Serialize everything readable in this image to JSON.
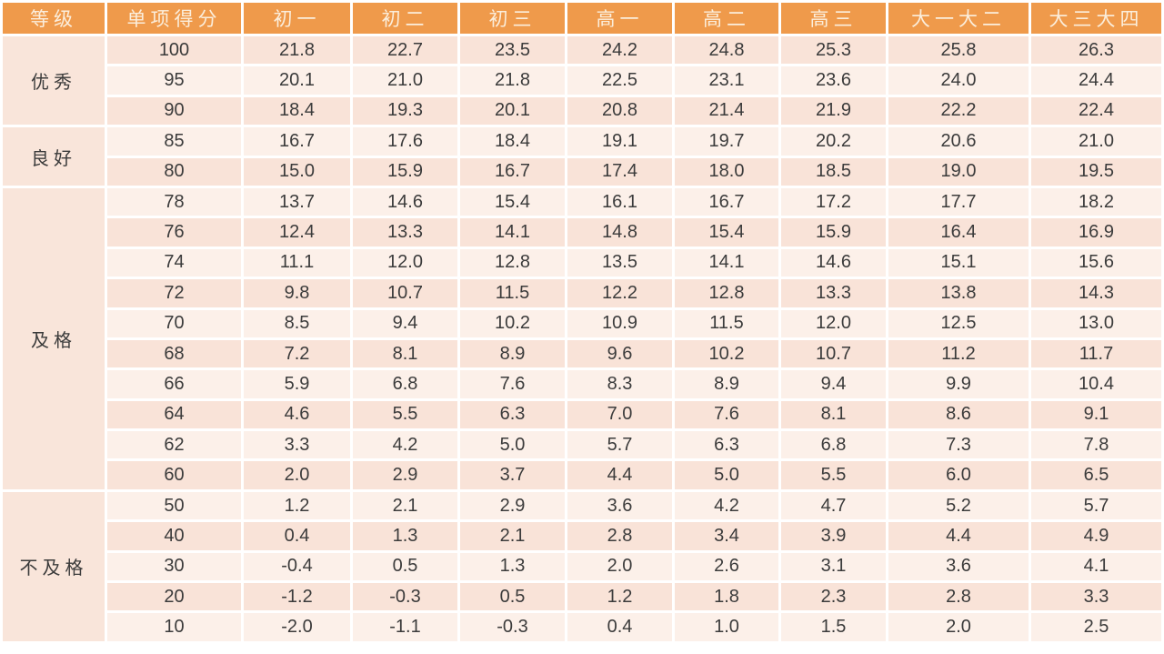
{
  "chart_data": {
    "type": "table",
    "columns": [
      "等级",
      "单项得分",
      "初一",
      "初二",
      "初三",
      "高一",
      "高二",
      "高三",
      "大一大二",
      "大三大四"
    ],
    "groups": [
      {
        "label": "优秀",
        "rows": [
          {
            "score": "100",
            "values": [
              "21.8",
              "22.7",
              "23.5",
              "24.2",
              "24.8",
              "25.3",
              "25.8",
              "26.3"
            ]
          },
          {
            "score": "95",
            "values": [
              "20.1",
              "21.0",
              "21.8",
              "22.5",
              "23.1",
              "23.6",
              "24.0",
              "24.4"
            ]
          },
          {
            "score": "90",
            "values": [
              "18.4",
              "19.3",
              "20.1",
              "20.8",
              "21.4",
              "21.9",
              "22.2",
              "22.4"
            ]
          }
        ]
      },
      {
        "label": "良好",
        "rows": [
          {
            "score": "85",
            "values": [
              "16.7",
              "17.6",
              "18.4",
              "19.1",
              "19.7",
              "20.2",
              "20.6",
              "21.0"
            ]
          },
          {
            "score": "80",
            "values": [
              "15.0",
              "15.9",
              "16.7",
              "17.4",
              "18.0",
              "18.5",
              "19.0",
              "19.5"
            ]
          }
        ]
      },
      {
        "label": "及格",
        "rows": [
          {
            "score": "78",
            "values": [
              "13.7",
              "14.6",
              "15.4",
              "16.1",
              "16.7",
              "17.2",
              "17.7",
              "18.2"
            ]
          },
          {
            "score": "76",
            "values": [
              "12.4",
              "13.3",
              "14.1",
              "14.8",
              "15.4",
              "15.9",
              "16.4",
              "16.9"
            ]
          },
          {
            "score": "74",
            "values": [
              "11.1",
              "12.0",
              "12.8",
              "13.5",
              "14.1",
              "14.6",
              "15.1",
              "15.6"
            ]
          },
          {
            "score": "72",
            "values": [
              "9.8",
              "10.7",
              "11.5",
              "12.2",
              "12.8",
              "13.3",
              "13.8",
              "14.3"
            ]
          },
          {
            "score": "70",
            "values": [
              "8.5",
              "9.4",
              "10.2",
              "10.9",
              "11.5",
              "12.0",
              "12.5",
              "13.0"
            ]
          },
          {
            "score": "68",
            "values": [
              "7.2",
              "8.1",
              "8.9",
              "9.6",
              "10.2",
              "10.7",
              "11.2",
              "11.7"
            ]
          },
          {
            "score": "66",
            "values": [
              "5.9",
              "6.8",
              "7.6",
              "8.3",
              "8.9",
              "9.4",
              "9.9",
              "10.4"
            ]
          },
          {
            "score": "64",
            "values": [
              "4.6",
              "5.5",
              "6.3",
              "7.0",
              "7.6",
              "8.1",
              "8.6",
              "9.1"
            ]
          },
          {
            "score": "62",
            "values": [
              "3.3",
              "4.2",
              "5.0",
              "5.7",
              "6.3",
              "6.8",
              "7.3",
              "7.8"
            ]
          },
          {
            "score": "60",
            "values": [
              "2.0",
              "2.9",
              "3.7",
              "4.4",
              "5.0",
              "5.5",
              "6.0",
              "6.5"
            ]
          }
        ]
      },
      {
        "label": "不及格",
        "rows": [
          {
            "score": "50",
            "values": [
              "1.2",
              "2.1",
              "2.9",
              "3.6",
              "4.2",
              "4.7",
              "5.2",
              "5.7"
            ]
          },
          {
            "score": "40",
            "values": [
              "0.4",
              "1.3",
              "2.1",
              "2.8",
              "3.4",
              "3.9",
              "4.4",
              "4.9"
            ]
          },
          {
            "score": "30",
            "values": [
              "-0.4",
              "0.5",
              "1.3",
              "2.0",
              "2.6",
              "3.1",
              "3.6",
              "4.1"
            ]
          },
          {
            "score": "20",
            "values": [
              "-1.2",
              "-0.3",
              "0.5",
              "1.2",
              "1.8",
              "2.3",
              "2.8",
              "3.3"
            ]
          },
          {
            "score": "10",
            "values": [
              "-2.0",
              "-1.1",
              "-0.3",
              "0.4",
              "1.0",
              "1.5",
              "2.0",
              "2.5"
            ]
          }
        ]
      }
    ]
  },
  "colors": {
    "header_bg": "#EF9A4B",
    "header_text": "#FBEEDC",
    "grade_bg": "#F9E5DA",
    "row_odd_bg": "#F9E3D8",
    "row_even_bg": "#FCF0E9",
    "text": "#3B3B3B"
  }
}
